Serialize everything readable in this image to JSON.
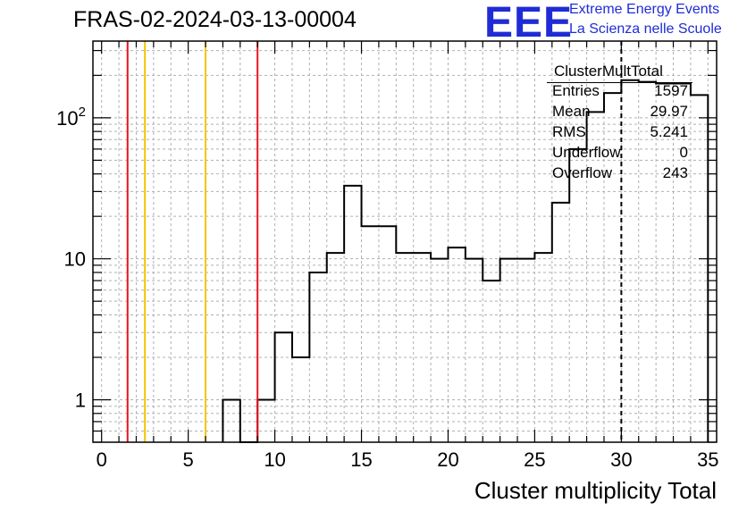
{
  "header": {
    "run_title": "FRAS-02-2024-03-13-00004",
    "logo_text": "EEE",
    "logo_line1": "Extreme Energy Events",
    "logo_line2": "La Scienza nelle Scuole",
    "logo_color": "#1f2cd6"
  },
  "stats_box": {
    "name": "ClusterMultTotal",
    "rows": [
      {
        "key": "Entries",
        "value": "1597"
      },
      {
        "key": "Mean",
        "value": "29.97"
      },
      {
        "key": "RMS",
        "value": "5.241"
      },
      {
        "key": "Underflow",
        "value": "0"
      },
      {
        "key": "Overflow",
        "value": "243"
      }
    ]
  },
  "chart_data": {
    "type": "histogram",
    "xlabel": "Cluster multiplicity Total",
    "ylabel": "",
    "xlim": [
      -0.5,
      35.5
    ],
    "ylim": [
      0.5,
      350
    ],
    "yscale": "log",
    "grid": true,
    "x_ticks": [
      0,
      5,
      10,
      15,
      20,
      25,
      30,
      35
    ],
    "y_ticks": [
      "1",
      "10",
      "10^2"
    ],
    "bin_width": 1,
    "bins": [
      {
        "x": 7.5,
        "count": 1
      },
      {
        "x": 9.5,
        "count": 1
      },
      {
        "x": 10.5,
        "count": 3
      },
      {
        "x": 11.5,
        "count": 2
      },
      {
        "x": 12.5,
        "count": 8
      },
      {
        "x": 13.5,
        "count": 11
      },
      {
        "x": 14.5,
        "count": 33
      },
      {
        "x": 15.5,
        "count": 17
      },
      {
        "x": 16.5,
        "count": 17
      },
      {
        "x": 17.5,
        "count": 11
      },
      {
        "x": 18.5,
        "count": 11
      },
      {
        "x": 19.5,
        "count": 10
      },
      {
        "x": 20.5,
        "count": 12
      },
      {
        "x": 21.5,
        "count": 10
      },
      {
        "x": 22.5,
        "count": 7
      },
      {
        "x": 23.5,
        "count": 10
      },
      {
        "x": 24.5,
        "count": 10
      },
      {
        "x": 25.5,
        "count": 11
      },
      {
        "x": 26.5,
        "count": 25
      },
      {
        "x": 27.5,
        "count": 60
      },
      {
        "x": 28.5,
        "count": 110
      },
      {
        "x": 29.5,
        "count": 150
      },
      {
        "x": 30.5,
        "count": 185
      },
      {
        "x": 31.5,
        "count": 180
      },
      {
        "x": 32.5,
        "count": 175
      },
      {
        "x": 33.5,
        "count": 175
      },
      {
        "x": 34.5,
        "count": 145
      }
    ],
    "vertical_lines": [
      {
        "x": 1.5,
        "color": "#e8141e",
        "style": "solid"
      },
      {
        "x": 2.5,
        "color": "#f5c400",
        "style": "solid"
      },
      {
        "x": 6.0,
        "color": "#f5c400",
        "style": "solid"
      },
      {
        "x": 9.0,
        "color": "#e8141e",
        "style": "solid"
      },
      {
        "x": 30.0,
        "color": "#000000",
        "style": "dashed"
      }
    ]
  }
}
